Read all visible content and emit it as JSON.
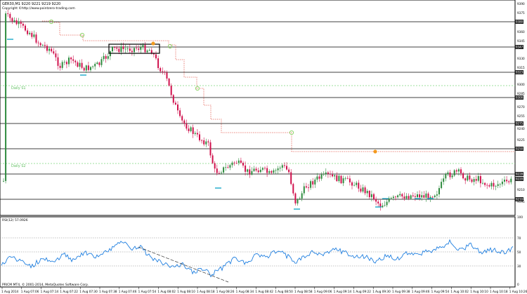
{
  "header": {
    "symbol_line": "GER30,M1 9220 9221 9219 9220",
    "copyright": "Copyright ©http://www.pointzero-trading.com"
  },
  "price_axis": {
    "labels": [
      "9390",
      "9375",
      "9360",
      "9345",
      "9330",
      "9315",
      "9300",
      "9285",
      "9270",
      "9255",
      "9240",
      "9225",
      "9210",
      "9195"
    ],
    "tags": [
      "9380",
      "9347",
      "9323",
      "9300",
      "9275",
      "9250",
      "9228",
      "9220",
      "9210"
    ]
  },
  "levels": {
    "daily_r1": "Daily S1",
    "daily_s2": "Daily S2"
  },
  "rsi": {
    "title": "RSI(12) 57.0926",
    "scale": [
      "100",
      "70",
      "50",
      "30",
      "0"
    ]
  },
  "footer": {
    "copyright": "PRICM MT4, © 2001-2014, MetaQuotes Software Corp."
  },
  "time_axis": {
    "labels": [
      "1 Aug 2014",
      "1 Aug 07:06",
      "1 Aug 07:14",
      "1 Aug 07:22",
      "1 Aug 07:30",
      "1 Aug 07:38",
      "1 Aug 07:46",
      "1 Aug 07:54",
      "1 Aug 08:02",
      "1 Aug 08:10",
      "1 Aug 08:18",
      "1 Aug 08:26",
      "1 Aug 08:34",
      "1 Aug 08:42",
      "1 Aug 08:50",
      "1 Aug 08:58",
      "1 Aug 09:06",
      "1 Aug 09:14",
      "1 Aug 09:22",
      "1 Aug 09:30",
      "1 Aug 09:38",
      "1 Aug 09:46",
      "1 Aug 09:54",
      "1 Aug 10:02",
      "1 Aug 10:10",
      "1 Aug 10:18",
      "1 Aug 10:26"
    ]
  },
  "colors": {
    "bull": "#2e8b3e",
    "bear": "#d0104c",
    "rsi_line": "#1f7fe0",
    "trail": "#e0473a",
    "grid": "#000000",
    "pivot_green": "#7dd87d",
    "cyan_marker": "#19a9c9",
    "orange_dot": "#f39a1e",
    "green_dot": "#8fd36a"
  }
}
